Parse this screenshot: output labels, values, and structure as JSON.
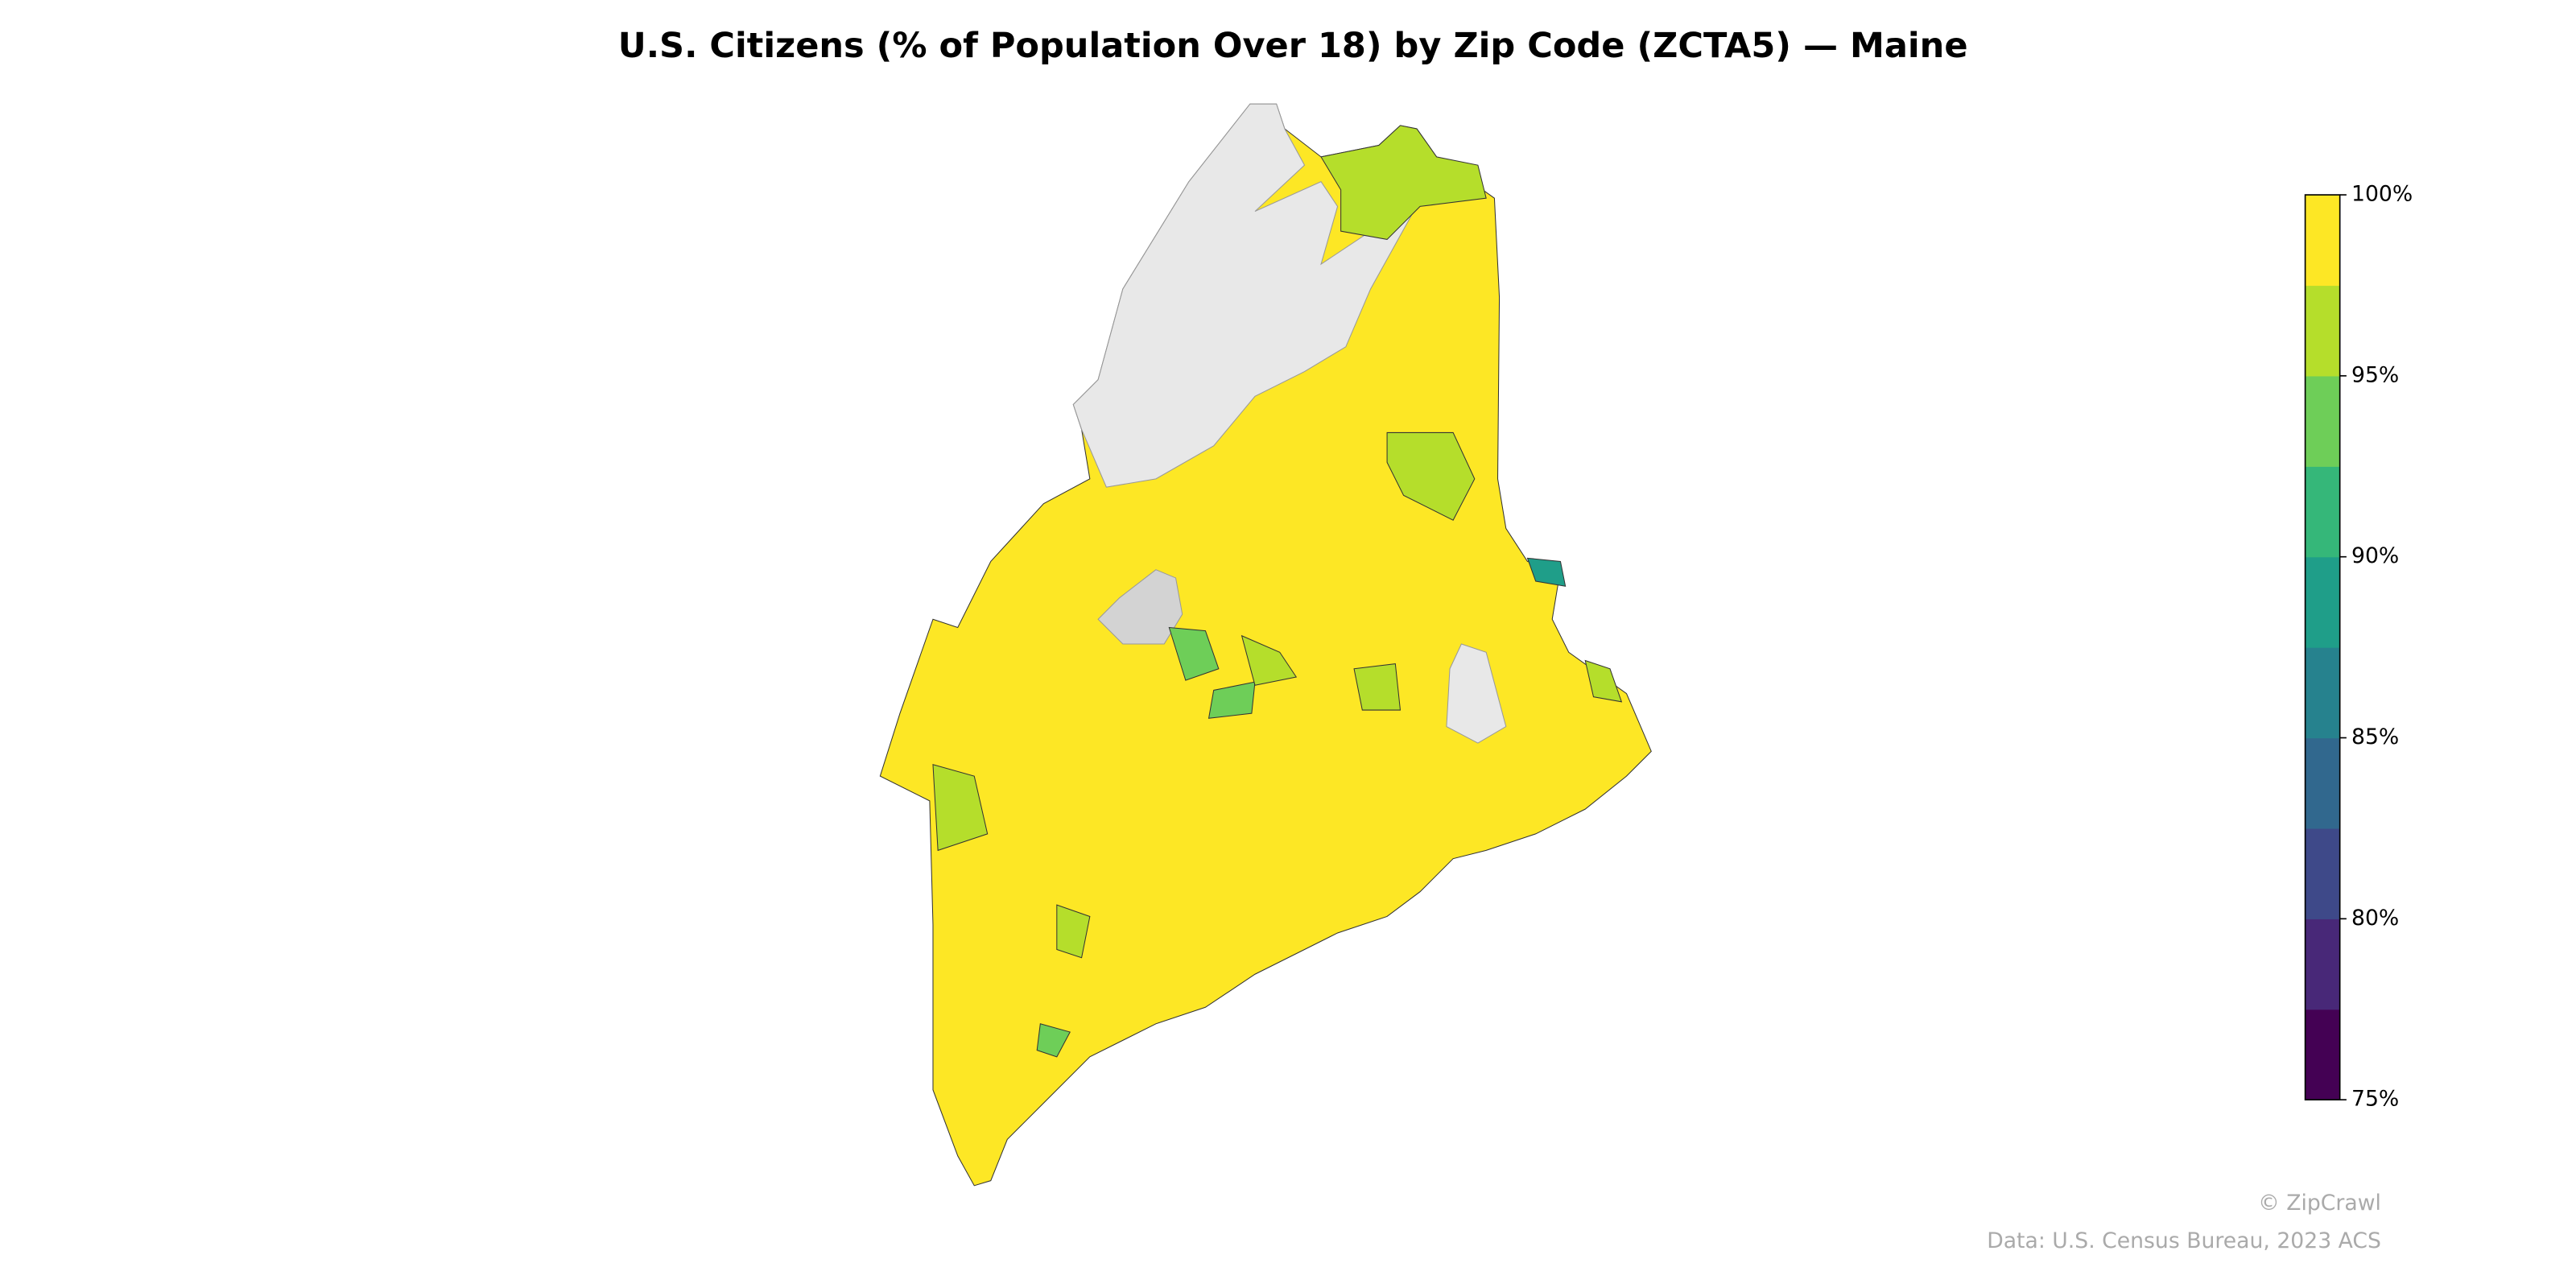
{
  "title": "U.S. Citizens (% of Population Over 18) by Zip Code (ZCTA5) — Maine",
  "colorbar": {
    "lim": [
      75,
      100
    ],
    "ticks": [
      {
        "value": 75,
        "label": "75%"
      },
      {
        "value": 80,
        "label": "80%"
      },
      {
        "value": 85,
        "label": "85%"
      },
      {
        "value": 90,
        "label": "90%"
      },
      {
        "value": 95,
        "label": "95%"
      },
      {
        "value": 100,
        "label": "100%"
      }
    ],
    "colors": [
      "#440154",
      "#482878",
      "#3e4989",
      "#31688e",
      "#26828e",
      "#1f9e89",
      "#35b779",
      "#6ece58",
      "#b5de2b",
      "#fde725"
    ]
  },
  "credits": [
    "© ZipCrawl",
    "Data: U.S. Census Bureau, 2023 ACS"
  ]
}
